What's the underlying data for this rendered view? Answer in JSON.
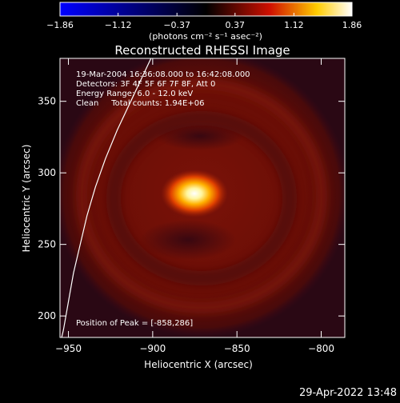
{
  "chart_data": {
    "type": "heatmap",
    "title": "Reconstructed RHESSI Image",
    "xlabel": "Heliocentric X (arcsec)",
    "ylabel": "Heliocentric Y (arcsec)",
    "xlim": [
      -955,
      -786
    ],
    "ylim": [
      185,
      380
    ],
    "xticks": [
      -950,
      -900,
      -850,
      -800
    ],
    "yticks": [
      200,
      250,
      300,
      350
    ],
    "xtick_labels": [
      "−950",
      "−900",
      "−850",
      "−800"
    ],
    "ytick_labels": [
      "200",
      "250",
      "300",
      "350"
    ],
    "colorbar": {
      "min": -1.86,
      "max": 1.86,
      "ticks": [
        -1.86,
        -1.12,
        -0.37,
        0.37,
        1.12,
        1.86
      ],
      "tick_labels": [
        "−1.86",
        "−1.12",
        "−0.37",
        "0.37",
        "1.12",
        "1.86"
      ],
      "unit_label": "(photons cm⁻² s⁻¹ asec⁻²)",
      "colors": [
        "#0000ff",
        "#000000",
        "#ff0000",
        "#ffff00",
        "#ffffff"
      ]
    },
    "annotations": [
      "19-Mar-2004 16:36:08.000 to 16:42:08.000",
      "Detectors: 3F 4F 5F 6F 7F 8F, Att 0",
      "Energy Range: 6.0 - 12.0 keV",
      "Clean     Total counts: 1.94E+06"
    ],
    "peak_label": "Position of Peak = [-858,286]",
    "peak": {
      "x": -858,
      "y": 286
    },
    "limb_curve": {
      "color": "#ffffff",
      "points": [
        [
          -901,
          380
        ],
        [
          -905,
          370
        ],
        [
          -913,
          350
        ],
        [
          -921,
          330
        ],
        [
          -928,
          310
        ],
        [
          -934,
          290
        ],
        [
          -939,
          270
        ],
        [
          -943,
          250
        ],
        [
          -947,
          230
        ],
        [
          -950,
          210
        ],
        [
          -953,
          190
        ],
        [
          -954,
          185
        ]
      ]
    }
  },
  "footer": {
    "timestamp": "29-Apr-2022 13:48"
  }
}
